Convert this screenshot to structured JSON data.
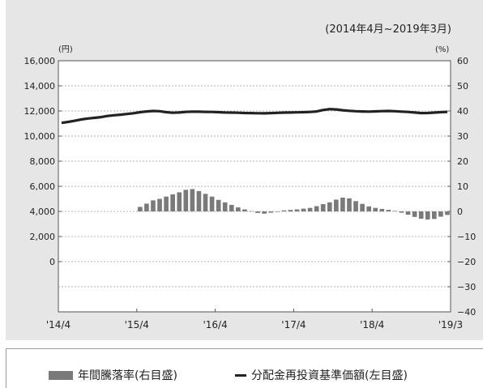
{
  "chart_data": {
    "type": "bar+line",
    "period_note": "(2014年4月~2019年3月)",
    "left_axis": {
      "unit_label": "(円)",
      "ylim": [
        -4000,
        16000
      ],
      "ticks": [
        "16,000",
        "14,000",
        "12,000",
        "10,000",
        "8,000",
        "6,000",
        "4,000",
        "2,000",
        "0"
      ],
      "tick_values": [
        16000,
        14000,
        12000,
        10000,
        8000,
        6000,
        4000,
        2000,
        0
      ]
    },
    "right_axis": {
      "unit_label": "(%)",
      "ylim": [
        -40,
        60
      ],
      "ticks": [
        "60",
        "50",
        "40",
        "30",
        "20",
        "10",
        "0",
        "−10",
        "−20",
        "−30",
        "−40"
      ],
      "tick_values": [
        60,
        50,
        40,
        30,
        20,
        10,
        0,
        -10,
        -20,
        -30,
        -40
      ]
    },
    "x_tick_labels": [
      "'14/4",
      "'15/4",
      "'16/4",
      "'17/4",
      "'18/4",
      "'19/3"
    ],
    "x_tick_months": [
      0,
      12,
      24,
      36,
      48,
      59
    ],
    "grid": "horizontal dotted",
    "series": [
      {
        "name": "年間騰落率(右目盛)",
        "axis": "right",
        "kind": "bar",
        "color": "#7a7a7a",
        "values": [
          0,
          0,
          0,
          0,
          0,
          0,
          0,
          0,
          0,
          0,
          0,
          0,
          1.8,
          3.1,
          4.4,
          5.0,
          5.9,
          6.8,
          7.6,
          8.6,
          8.9,
          8.1,
          7.0,
          5.9,
          4.6,
          3.6,
          2.6,
          1.6,
          0.8,
          0.1,
          -0.6,
          -0.9,
          -0.5,
          -0.2,
          0.4,
          0.6,
          0.8,
          1.1,
          1.4,
          2.1,
          2.9,
          3.6,
          4.7,
          5.5,
          5.2,
          4.1,
          3.0,
          2.0,
          1.4,
          1.0,
          0.6,
          0.2,
          -0.5,
          -1.3,
          -2.2,
          -2.9,
          -3.2,
          -3.0,
          -2.1,
          -1.4
        ]
      },
      {
        "name": "分配金再投資基準価額(左目盛)",
        "axis": "left",
        "kind": "line",
        "color": "#222222",
        "values": [
          11050,
          11130,
          11220,
          11320,
          11400,
          11450,
          11510,
          11600,
          11660,
          11700,
          11760,
          11820,
          11900,
          11960,
          12000,
          11980,
          11900,
          11860,
          11880,
          11930,
          11950,
          11940,
          11930,
          11920,
          11900,
          11880,
          11870,
          11860,
          11840,
          11830,
          11820,
          11810,
          11830,
          11850,
          11870,
          11880,
          11890,
          11900,
          11920,
          11960,
          12080,
          12150,
          12120,
          12060,
          12010,
          11980,
          11960,
          11950,
          11970,
          11990,
          12000,
          11980,
          11950,
          11920,
          11880,
          11830,
          11840,
          11870,
          11900,
          11930
        ]
      }
    ]
  },
  "legend": {
    "bar_label": "年間騰落率(右目盛)",
    "line_label": "分配金再投資基準価額(左目盛)"
  }
}
